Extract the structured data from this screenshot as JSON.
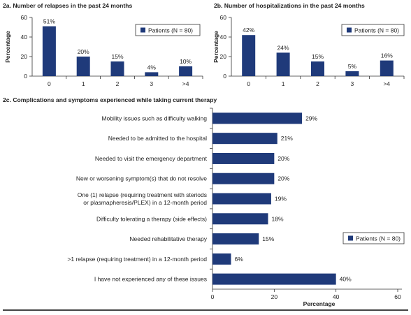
{
  "colors": {
    "bar": "#1f3a7a",
    "axis": "#333333",
    "text": "#222222",
    "rule": "#444444"
  },
  "chart_data": [
    {
      "id": "2a",
      "type": "bar",
      "title": "2a. Number of relapses in the past 24 months",
      "ylabel": "Percentage",
      "xlabel": "",
      "ylim": [
        0,
        60
      ],
      "yticks": [
        0,
        20,
        40,
        60
      ],
      "categories": [
        "0",
        "1",
        "2",
        "3",
        ">4"
      ],
      "series": [
        {
          "name": "Patients (N = 80)",
          "values": [
            51,
            20,
            15,
            4,
            10
          ]
        }
      ],
      "data_labels": [
        "51%",
        "20%",
        "15%",
        "4%",
        "10%"
      ],
      "legend": "top-right",
      "grid": false
    },
    {
      "id": "2b",
      "type": "bar",
      "title": "2b. Number of hospitalizations in the past 24 months",
      "ylabel": "Percentage",
      "xlabel": "",
      "ylim": [
        0,
        60
      ],
      "yticks": [
        0,
        20,
        40,
        60
      ],
      "categories": [
        "0",
        "1",
        "2",
        "3",
        ">4"
      ],
      "series": [
        {
          "name": "Patients (N = 80)",
          "values": [
            42,
            24,
            15,
            5,
            16
          ]
        }
      ],
      "data_labels": [
        "42%",
        "24%",
        "15%",
        "5%",
        "16%"
      ],
      "legend": "top-right",
      "grid": false
    },
    {
      "id": "2c",
      "type": "bar",
      "orientation": "horizontal",
      "title": "2c. Complications and symptoms experienced while taking current therapy",
      "xlabel": "Percentage",
      "ylabel": "",
      "xlim": [
        0,
        60
      ],
      "xticks": [
        0,
        20,
        40,
        60
      ],
      "categories": [
        "Mobility issues such as difficulty walking",
        "Needed to be admitted to the hospital",
        "Needed to visit the emergency department",
        "New or worsening symptom(s) that do not resolve",
        "One (1) relapse (requiring treatment with steriods\nor plasmapheresis/PLEX) in a 12-month period",
        "Difficulty tolerating a therapy (side effects)",
        "Needed rehabilitative therapy",
        ">1 relapse (requiring treatment) in a 12-month period",
        "I have not experienced any of these issues"
      ],
      "series": [
        {
          "name": "Patients (N = 80)",
          "values": [
            29,
            21,
            20,
            20,
            19,
            18,
            15,
            6,
            40
          ]
        }
      ],
      "data_labels": [
        "29%",
        "21%",
        "20%",
        "20%",
        "19%",
        "18%",
        "15%",
        "6%",
        "40%"
      ],
      "legend": "bottom-right",
      "grid": false
    }
  ]
}
